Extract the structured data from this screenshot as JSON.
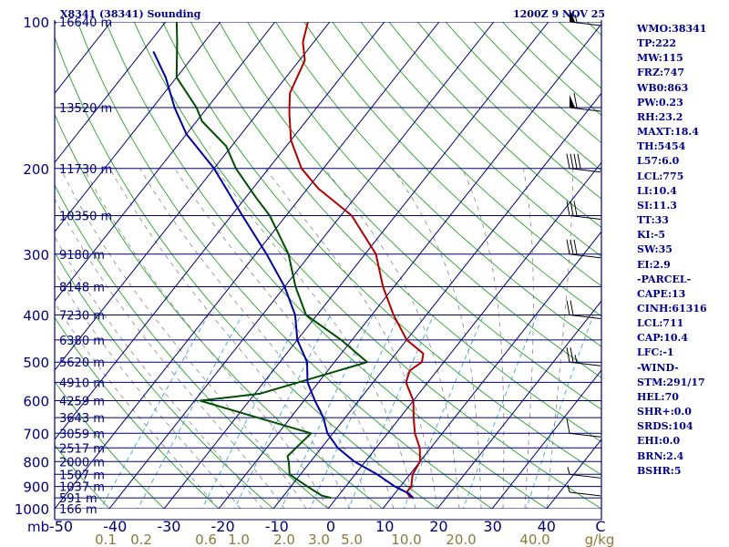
{
  "header": {
    "left": "X8341 (38341) Sounding",
    "right": "1200Z  9 NOV 25"
  },
  "indices": [
    "WMO:38341",
    "TP:222",
    "MW:115",
    "FRZ:747",
    "WB0:863",
    "PW:0.23",
    "RH:23.2",
    "MAXT:18.4",
    "TH:5454",
    "L57:6.0",
    "LCL:775",
    "LI:10.4",
    "SI:11.3",
    "TT:33",
    "KI:-5",
    "SW:35",
    "EI:2.9",
    "-PARCEL-",
    "CAPE:13",
    "CINH:61316",
    "LCL:711",
    "CAP:10.4",
    "LFC:-1",
    "-WIND-",
    "STM:291/17",
    "HEL:70",
    "SHR+:0.0",
    "SRDS:104",
    "EHI:0.0",
    "BRN:2.4",
    "BSHR:5"
  ],
  "chart_data": {
    "type": "line",
    "chart_kind": "skew-T log-P sounding",
    "y_scale": "log",
    "ylim": [
      1000,
      100
    ],
    "xlim": [
      -50,
      50
    ],
    "pressure_tick_labels": [
      "100",
      "200",
      "300",
      "400",
      "500",
      "600",
      "700",
      "800",
      "900",
      "1000"
    ],
    "y_unit_label": "mb",
    "temperature_tick_labels": [
      "-50",
      "-40",
      "-30",
      "-20",
      "-10",
      "0",
      "10",
      "20",
      "30",
      "40",
      "C"
    ],
    "mixing_ratio_labels": [
      "0.1",
      "0.2",
      "0.6",
      "1.0",
      "2.0",
      "3.0",
      "5.0",
      "10.0",
      "20.0",
      "40.0",
      "g/kg"
    ],
    "height_labels": [
      {
        "p": 100,
        "label": "16640 m"
      },
      {
        "p": 150,
        "label": "13520 m"
      },
      {
        "p": 200,
        "label": "11730 m"
      },
      {
        "p": 250,
        "label": "10350 m"
      },
      {
        "p": 300,
        "label": "9180 m"
      },
      {
        "p": 350,
        "label": "8148 m"
      },
      {
        "p": 400,
        "label": "7230 m"
      },
      {
        "p": 450,
        "label": "6380 m"
      },
      {
        "p": 500,
        "label": "5620 m"
      },
      {
        "p": 550,
        "label": "4910 m"
      },
      {
        "p": 600,
        "label": "4259 m"
      },
      {
        "p": 650,
        "label": "3643 m"
      },
      {
        "p": 700,
        "label": "3059 m"
      },
      {
        "p": 750,
        "label": "2517 m"
      },
      {
        "p": 800,
        "label": "2000 m"
      },
      {
        "p": 850,
        "label": "1507 m"
      },
      {
        "p": 900,
        "label": "1037 m"
      },
      {
        "p": 950,
        "label": "591 m"
      },
      {
        "p": 1000,
        "label": "166 m"
      }
    ],
    "series": [
      {
        "key": "temperature",
        "color": "#b00000",
        "points": [
          [
            950,
            13.5
          ],
          [
            925,
            12
          ],
          [
            900,
            12
          ],
          [
            850,
            10.5
          ],
          [
            800,
            10
          ],
          [
            750,
            8
          ],
          [
            700,
            5
          ],
          [
            650,
            2.5
          ],
          [
            600,
            0
          ],
          [
            550,
            -4
          ],
          [
            520,
            -5
          ],
          [
            500,
            -4
          ],
          [
            480,
            -5
          ],
          [
            450,
            -10
          ],
          [
            400,
            -16
          ],
          [
            350,
            -22
          ],
          [
            300,
            -28
          ],
          [
            250,
            -38
          ],
          [
            220,
            -48
          ],
          [
            200,
            -54
          ],
          [
            175,
            -60
          ],
          [
            155,
            -64
          ],
          [
            150,
            -65
          ],
          [
            140,
            -67
          ],
          [
            120,
            -69
          ],
          [
            110,
            -72
          ],
          [
            100,
            -74
          ]
        ]
      },
      {
        "key": "dewpoint",
        "color": "#004d00",
        "points": [
          [
            950,
            -1
          ],
          [
            940,
            -3
          ],
          [
            900,
            -7
          ],
          [
            870,
            -10
          ],
          [
            850,
            -12
          ],
          [
            800,
            -14
          ],
          [
            780,
            -15
          ],
          [
            700,
            -14
          ],
          [
            600,
            -39
          ],
          [
            580,
            -29
          ],
          [
            500,
            -14
          ],
          [
            450,
            -22
          ],
          [
            400,
            -32
          ],
          [
            350,
            -38
          ],
          [
            300,
            -44
          ],
          [
            250,
            -53
          ],
          [
            230,
            -58
          ],
          [
            200,
            -66
          ],
          [
            180,
            -71
          ],
          [
            160,
            -79
          ],
          [
            150,
            -82
          ],
          [
            130,
            -90
          ],
          [
            110,
            -95
          ],
          [
            100,
            -98
          ]
        ]
      },
      {
        "key": "parcel",
        "color": "#0000a0",
        "points": [
          [
            950,
            14
          ],
          [
            930,
            12.5
          ],
          [
            900,
            9
          ],
          [
            850,
            4
          ],
          [
            800,
            -2
          ],
          [
            750,
            -7
          ],
          [
            700,
            -11
          ],
          [
            650,
            -14
          ],
          [
            600,
            -18
          ],
          [
            550,
            -22
          ],
          [
            500,
            -25
          ],
          [
            450,
            -30
          ],
          [
            400,
            -34
          ],
          [
            350,
            -40
          ],
          [
            300,
            -48
          ],
          [
            250,
            -58
          ],
          [
            200,
            -70
          ],
          [
            170,
            -80
          ],
          [
            150,
            -86
          ],
          [
            130,
            -92
          ],
          [
            115,
            -98
          ]
        ]
      }
    ],
    "wind_barbs": [
      {
        "p": 100,
        "dir": 290,
        "spd": 55
      },
      {
        "p": 150,
        "dir": 290,
        "spd": 60
      },
      {
        "p": 200,
        "dir": 275,
        "spd": 40
      },
      {
        "p": 250,
        "dir": 275,
        "spd": 30
      },
      {
        "p": 300,
        "dir": 280,
        "spd": 30
      },
      {
        "p": 400,
        "dir": 270,
        "spd": 20
      },
      {
        "p": 500,
        "dir": 270,
        "spd": 25
      },
      {
        "p": 700,
        "dir": 240,
        "spd": 10
      },
      {
        "p": 850,
        "dir": 290,
        "spd": 5
      },
      {
        "p": 925,
        "dir": 300,
        "spd": 5
      }
    ]
  }
}
